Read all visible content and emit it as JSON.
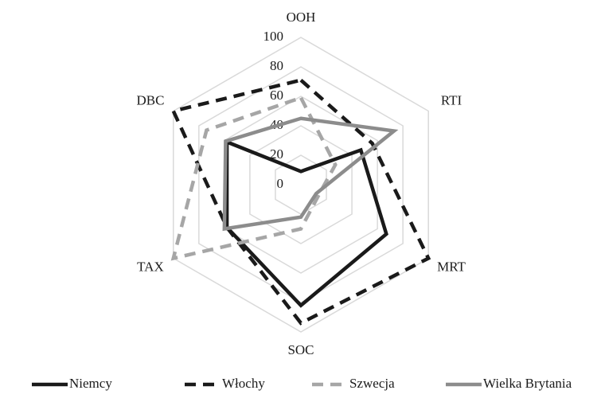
{
  "chart_data": {
    "type": "radar",
    "categories": [
      "OOH",
      "RTI",
      "MRT",
      "SOC",
      "TAX",
      "DBC"
    ],
    "series": [
      {
        "name": "Niemcy",
        "color": "#1a1a1a",
        "dash": "solid",
        "values": [
          9,
          47,
          67,
          82,
          58,
          58
        ]
      },
      {
        "name": "Włochy",
        "color": "#1a1a1a",
        "dash": "dashed",
        "values": [
          71,
          56,
          100,
          94,
          58,
          100
        ]
      },
      {
        "name": "Szwecja",
        "color": "#a6a6a6",
        "dash": "dashed",
        "values": [
          59,
          27,
          14,
          30,
          100,
          74
        ]
      },
      {
        "name": "Wielka Brytania",
        "color": "#8c8c8c",
        "dash": "solid",
        "values": [
          45,
          73,
          12,
          22,
          60,
          59
        ]
      }
    ],
    "ylim": [
      0,
      100
    ],
    "yticks": [
      0,
      20,
      40,
      60,
      80,
      100
    ],
    "grid": true,
    "legend": "bottom"
  }
}
